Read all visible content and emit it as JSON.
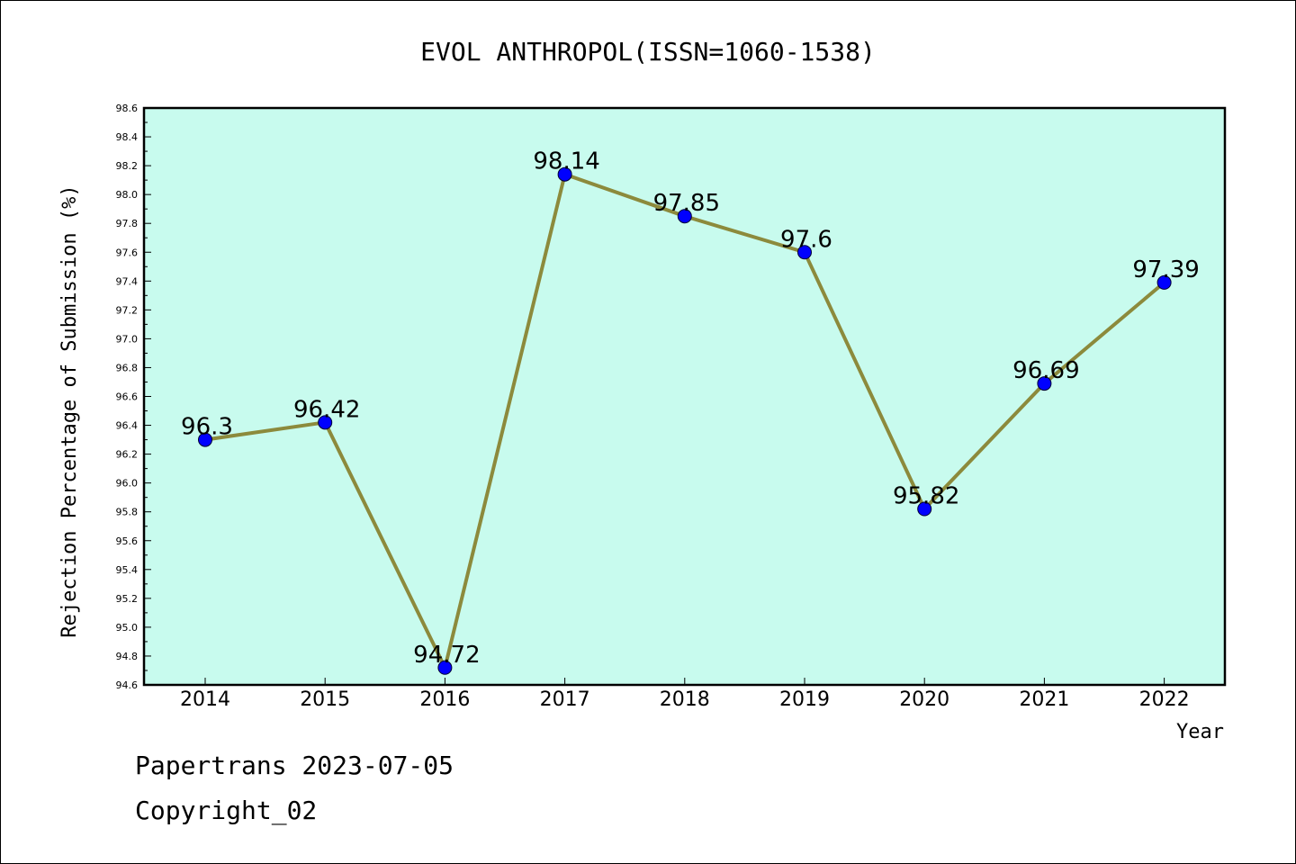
{
  "chart_data": {
    "type": "line",
    "title": "EVOL ANTHROPOL(ISSN=1060-1538)",
    "xlabel": "Year",
    "ylabel": "Rejection Percentage of Submission (%)",
    "categories": [
      "2014",
      "2015",
      "2016",
      "2017",
      "2018",
      "2019",
      "2020",
      "2021",
      "2022"
    ],
    "values": [
      96.3,
      96.42,
      94.72,
      98.14,
      97.85,
      97.6,
      95.82,
      96.69,
      97.39
    ],
    "value_labels": [
      "96.3",
      "96.42",
      "94.72",
      "98.14",
      "97.85",
      "97.6",
      "95.82",
      "96.69",
      "97.39"
    ],
    "ylim": [
      94.6,
      98.6
    ],
    "yticks": [
      "94.6",
      "94.8",
      "95.0",
      "95.2",
      "95.4",
      "95.6",
      "95.8",
      "96.0",
      "96.2",
      "96.4",
      "96.6",
      "96.8",
      "97.0",
      "97.2",
      "97.4",
      "97.6",
      "97.8",
      "98.0",
      "98.2",
      "98.4",
      "98.6"
    ],
    "grid": false,
    "colors": {
      "plot_background": "#c8fbee",
      "line": "#8c8a3c",
      "marker": "#0000ff"
    }
  },
  "footer": {
    "source": "Papertrans 2023-07-05",
    "copyright": "Copyright_02"
  }
}
